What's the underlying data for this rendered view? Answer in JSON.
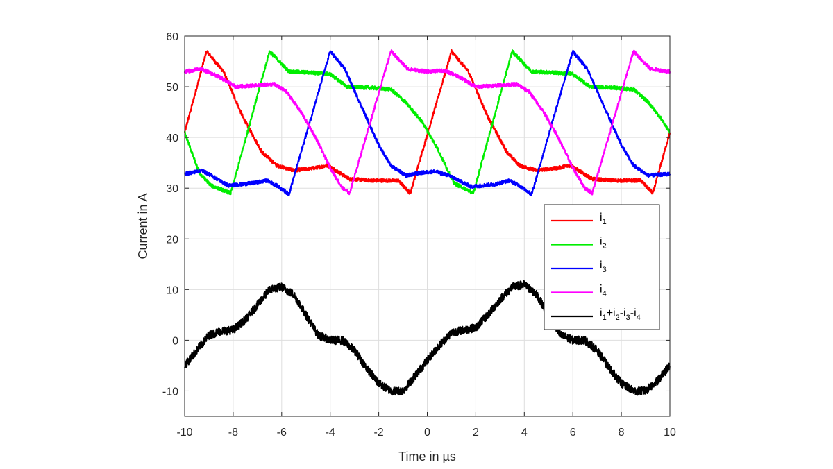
{
  "chart_data": {
    "type": "line",
    "xlabel": "Time in µs",
    "ylabel": "Current in A",
    "xlim": [
      -10,
      10
    ],
    "ylim": [
      -15,
      60
    ],
    "xticks": [
      -10,
      -8,
      -6,
      -4,
      -2,
      0,
      2,
      4,
      6,
      8,
      10
    ],
    "yticks": [
      -10,
      0,
      10,
      20,
      30,
      40,
      50,
      60
    ],
    "grid": true,
    "legend_position": "right",
    "series": [
      {
        "name": "i1",
        "label_main": "i",
        "label_sub": "1",
        "color": "#ff0000",
        "points": [
          [
            -10,
            41
          ],
          [
            -9.1,
            57
          ],
          [
            -8.4,
            53
          ],
          [
            -7.6,
            44
          ],
          [
            -6.8,
            37
          ],
          [
            -6.2,
            34.5
          ],
          [
            -5.5,
            33.5
          ],
          [
            -4.6,
            34
          ],
          [
            -4.1,
            34.5
          ],
          [
            -3.6,
            33
          ],
          [
            -3.2,
            31.8
          ],
          [
            -2.2,
            31.5
          ],
          [
            -1.2,
            31.5
          ],
          [
            -0.7,
            29
          ],
          [
            1,
            57
          ],
          [
            1.7,
            53
          ],
          [
            2.5,
            44
          ],
          [
            3.3,
            37
          ],
          [
            3.8,
            34.5
          ],
          [
            4.5,
            33.5
          ],
          [
            5.4,
            34
          ],
          [
            5.9,
            34.5
          ],
          [
            6.4,
            33
          ],
          [
            6.8,
            31.8
          ],
          [
            7.8,
            31.5
          ],
          [
            8.8,
            31.5
          ],
          [
            9.3,
            29
          ],
          [
            10,
            41
          ]
        ]
      },
      {
        "name": "i2",
        "label_main": "i",
        "label_sub": "2",
        "color": "#00ee00",
        "points": [
          [
            -10,
            41
          ],
          [
            -9.4,
            33
          ],
          [
            -8.9,
            30.5
          ],
          [
            -8.1,
            29
          ],
          [
            -6.5,
            57
          ],
          [
            -5.7,
            53
          ],
          [
            -4.8,
            52.8
          ],
          [
            -4,
            52.5
          ],
          [
            -3.3,
            50
          ],
          [
            -2.3,
            49.8
          ],
          [
            -1.5,
            49.5
          ],
          [
            -0.9,
            47
          ],
          [
            -0.2,
            43
          ],
          [
            0.4,
            38
          ],
          [
            1.1,
            31
          ],
          [
            1.9,
            29
          ],
          [
            3.5,
            57
          ],
          [
            4.3,
            53
          ],
          [
            5.2,
            52.8
          ],
          [
            6,
            52.5
          ],
          [
            6.7,
            50
          ],
          [
            7.7,
            49.8
          ],
          [
            8.5,
            49.5
          ],
          [
            9.1,
            47
          ],
          [
            9.6,
            44
          ],
          [
            10,
            41
          ]
        ]
      },
      {
        "name": "i3",
        "label_main": "i",
        "label_sub": "3",
        "color": "#0000ff",
        "points": [
          [
            -10,
            32.8
          ],
          [
            -9.3,
            33.5
          ],
          [
            -8.9,
            32.5
          ],
          [
            -8.2,
            30.5
          ],
          [
            -7.2,
            31
          ],
          [
            -6.6,
            31.5
          ],
          [
            -6.2,
            30.5
          ],
          [
            -5.7,
            28.8
          ],
          [
            -4,
            57
          ],
          [
            -3.4,
            53.5
          ],
          [
            -2.7,
            46
          ],
          [
            -2,
            38.5
          ],
          [
            -1.5,
            34.5
          ],
          [
            -0.9,
            32.5
          ],
          [
            -0.3,
            33
          ],
          [
            0.3,
            33.3
          ],
          [
            0.9,
            32.5
          ],
          [
            1.8,
            30.3
          ],
          [
            2.8,
            30.8
          ],
          [
            3.4,
            31.5
          ],
          [
            3.8,
            30.5
          ],
          [
            4.3,
            28.8
          ],
          [
            6,
            57
          ],
          [
            6.6,
            53.5
          ],
          [
            7.3,
            46
          ],
          [
            8,
            38.5
          ],
          [
            8.5,
            34.5
          ],
          [
            9.1,
            32.5
          ],
          [
            10,
            32.8
          ]
        ]
      },
      {
        "name": "i4",
        "label_main": "i",
        "label_sub": "4",
        "color": "#ff00ff",
        "points": [
          [
            -10,
            53
          ],
          [
            -9.3,
            53.5
          ],
          [
            -8.6,
            52
          ],
          [
            -7.9,
            50
          ],
          [
            -7,
            50.3
          ],
          [
            -6.3,
            50.5
          ],
          [
            -5.8,
            49
          ],
          [
            -5.2,
            45
          ],
          [
            -4.6,
            40
          ],
          [
            -4,
            34
          ],
          [
            -3.5,
            30
          ],
          [
            -3.2,
            29
          ],
          [
            -1.5,
            57
          ],
          [
            -0.8,
            53.5
          ],
          [
            0,
            53
          ],
          [
            0.7,
            53.2
          ],
          [
            1.3,
            52
          ],
          [
            2,
            50
          ],
          [
            3,
            50.3
          ],
          [
            3.7,
            50.5
          ],
          [
            4.2,
            49
          ],
          [
            4.8,
            45
          ],
          [
            5.4,
            40
          ],
          [
            6,
            34
          ],
          [
            6.5,
            30
          ],
          [
            6.8,
            29
          ],
          [
            8.5,
            57
          ],
          [
            9.2,
            53.5
          ],
          [
            10,
            53
          ]
        ]
      },
      {
        "name": "i1+i2-i3-i4",
        "label_main": "i",
        "label_sub": "1",
        "label_parts": [
          [
            "i",
            "1"
          ],
          [
            "+i",
            "2"
          ],
          [
            "-i",
            "3"
          ],
          [
            "-i",
            "4"
          ]
        ],
        "color": "#000000",
        "points": [
          [
            -10,
            -5
          ],
          [
            -9.5,
            -2
          ],
          [
            -9,
            1
          ],
          [
            -8.5,
            1.8
          ],
          [
            -8,
            2
          ],
          [
            -7.5,
            4
          ],
          [
            -7,
            7
          ],
          [
            -6.5,
            10
          ],
          [
            -6,
            10.5
          ],
          [
            -5.5,
            9
          ],
          [
            -5,
            5
          ],
          [
            -4.5,
            1
          ],
          [
            -4,
            0
          ],
          [
            -3.5,
            0
          ],
          [
            -3,
            -2
          ],
          [
            -2.5,
            -5.5
          ],
          [
            -2,
            -8.5
          ],
          [
            -1.5,
            -10
          ],
          [
            -1,
            -10
          ],
          [
            -0.5,
            -7
          ],
          [
            0,
            -4
          ],
          [
            0.5,
            -1
          ],
          [
            1,
            1.5
          ],
          [
            1.5,
            2
          ],
          [
            2,
            2.5
          ],
          [
            2.5,
            5
          ],
          [
            3,
            8
          ],
          [
            3.5,
            10.5
          ],
          [
            4,
            11
          ],
          [
            4.5,
            9
          ],
          [
            5,
            5
          ],
          [
            5.5,
            1
          ],
          [
            6,
            0
          ],
          [
            6.5,
            0
          ],
          [
            7,
            -2
          ],
          [
            7.5,
            -5.5
          ],
          [
            8,
            -8.5
          ],
          [
            8.5,
            -10
          ],
          [
            9,
            -10
          ],
          [
            9.5,
            -8
          ],
          [
            10,
            -5
          ]
        ]
      }
    ]
  }
}
